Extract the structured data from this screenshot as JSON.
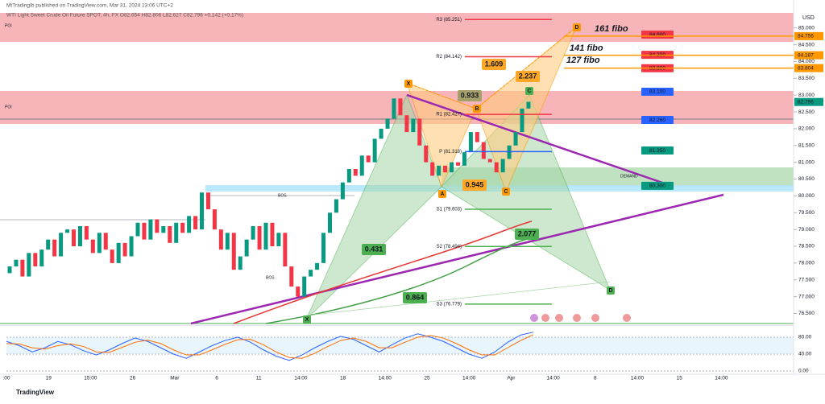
{
  "header": {
    "published": "MtTradingIb published on TradingView.com, Mar 31, 2024 13:06 UTC+2",
    "symbol": "WTI Light Sweet Crude Oil Future SPOT, 4h, FX  O82.654 H82.806 L82.627 C82.796 +0.142 (+0.17%)"
  },
  "price_axis": {
    "currency": "USD",
    "ylim": [
      76.2,
      85.4
    ],
    "ticks": [
      {
        "value": 85,
        "label": "85.000"
      },
      {
        "value": 84.5,
        "label": "84.500"
      },
      {
        "value": 84,
        "label": "84.000"
      },
      {
        "value": 83.5,
        "label": "83.500"
      },
      {
        "value": 83,
        "label": "83.000"
      },
      {
        "value": 82.5,
        "label": "82.500"
      },
      {
        "value": 82,
        "label": "82.000"
      },
      {
        "value": 81.5,
        "label": "81.500"
      },
      {
        "value": 81,
        "label": "81.000"
      },
      {
        "value": 80.5,
        "label": "80.500"
      },
      {
        "value": 80,
        "label": "80.000"
      },
      {
        "value": 79.5,
        "label": "79.500"
      },
      {
        "value": 79,
        "label": "79.000"
      },
      {
        "value": 78.5,
        "label": "78.500"
      },
      {
        "value": 78,
        "label": "78.000"
      },
      {
        "value": 77.5,
        "label": "77.500"
      },
      {
        "value": 77,
        "label": "77.000"
      },
      {
        "value": 76.5,
        "label": "76.500"
      }
    ]
  },
  "axis_tags": [
    {
      "value": 84.756,
      "label": "84.756",
      "color": "#ff9800"
    },
    {
      "value": 84.187,
      "label": "84.187",
      "color": "#ff9800"
    },
    {
      "value": 83.804,
      "label": "83.804",
      "color": "#ff9800"
    },
    {
      "value": 82.796,
      "label": "82.796",
      "color": "#089981"
    }
  ],
  "target_tags": [
    {
      "value": 84.8,
      "label": "84.800",
      "color": "#f23645"
    },
    {
      "value": 84.2,
      "label": "84.200",
      "color": "#f23645"
    },
    {
      "value": 83.8,
      "label": "83.800",
      "color": "#f23645"
    },
    {
      "value": 83.1,
      "label": "83.100",
      "color": "#2962ff"
    },
    {
      "value": 82.26,
      "label": "82.260",
      "color": "#2962ff"
    },
    {
      "value": 81.35,
      "label": "81.350",
      "color": "#089981"
    },
    {
      "value": 80.3,
      "label": "80.300",
      "color": "#089981"
    }
  ],
  "pivots": [
    {
      "value": 85.251,
      "label": "R3 (85.251)",
      "color": "#f23645"
    },
    {
      "value": 84.142,
      "label": "R2 (84.142)",
      "color": "#f23645"
    },
    {
      "value": 82.427,
      "label": "R1 (82.427)",
      "color": "#f23645"
    },
    {
      "value": 81.318,
      "label": "P (81.318)",
      "color": "#2962ff"
    },
    {
      "value": 79.603,
      "label": "S1 (79.603)",
      "color": "#4caf50"
    },
    {
      "value": 78.494,
      "label": "S2 (78.494)",
      "color": "#4caf50"
    },
    {
      "value": 76.779,
      "label": "S3 (76.779)",
      "color": "#4caf50"
    }
  ],
  "candles": {
    "up_color": "#089981",
    "down_color": "#f23645",
    "first_open": 77.7,
    "closes": [
      77.9,
      78.1,
      77.6,
      78.3,
      77.9,
      78.4,
      78.7,
      78.2,
      78.9,
      79.0,
      78.5,
      79.1,
      78.7,
      78.3,
      78.9,
      78.4,
      78.0,
      78.6,
      78.2,
      78.8,
      79.2,
      78.7,
      79.3,
      78.9,
      79.1,
      78.6,
      79.2,
      78.9,
      79.4,
      79.0,
      80.1,
      79.6,
      79.0,
      78.4,
      78.9,
      77.8,
      78.2,
      78.7,
      79.1,
      78.4,
      79.2,
      78.5,
      78.9,
      77.9,
      77.3,
      77.0,
      77.6,
      77.8,
      78.0,
      78.9,
      79.5,
      79.9,
      80.4,
      80.8,
      80.6,
      81.2,
      81.0,
      81.7,
      82.0,
      82.3,
      82.9,
      82.4,
      81.9,
      82.3,
      81.5,
      81.0,
      80.6,
      80.9,
      80.7,
      81.0,
      80.9,
      81.3,
      81.9,
      81.6,
      81.1,
      81.0,
      80.7,
      81.1,
      81.5,
      81.9,
      82.6,
      82.8
    ]
  },
  "pattern_points": [
    "X",
    "A",
    "B",
    "C",
    "D",
    "C",
    "D",
    "X"
  ],
  "ratios": [
    "0.933",
    "1.609",
    "2.237",
    "0.945",
    "0.431",
    "2.077",
    "0.864"
  ],
  "fibo": [
    "161 fibo",
    "141 fibo",
    "127 fibo"
  ],
  "zones": [
    "POI",
    "POI",
    "DEMAND",
    "BOS",
    "BOS"
  ],
  "time_labels": [
    ":00",
    "19",
    "15:00",
    "26",
    "Mar",
    "6",
    "11",
    "14:00",
    "18",
    "14:00",
    "25",
    "14:00",
    "Apr",
    "14:00",
    "8",
    "14:00",
    "15",
    "14:00"
  ],
  "oscillator": {
    "ylim": [
      0,
      100
    ],
    "ticks": [
      {
        "value": 80,
        "label": "80.00"
      },
      {
        "value": 40,
        "label": "40.00"
      },
      {
        "value": 0,
        "label": "0.00"
      }
    ],
    "k_color": "#2962ff",
    "d_color": "#ff6d00",
    "k": [
      70,
      60,
      45,
      55,
      70,
      62,
      48,
      38,
      50,
      65,
      78,
      70,
      55,
      40,
      30,
      45,
      60,
      72,
      80,
      68,
      50,
      35,
      25,
      38,
      55,
      70,
      82,
      75,
      60,
      45,
      62,
      78,
      88,
      80,
      70,
      55,
      40,
      30,
      45,
      68,
      85,
      92
    ],
    "d": [
      65,
      64,
      55,
      52,
      60,
      64,
      58,
      45,
      44,
      56,
      68,
      73,
      65,
      50,
      38,
      38,
      50,
      63,
      74,
      75,
      62,
      45,
      32,
      30,
      42,
      58,
      72,
      78,
      70,
      55,
      55,
      68,
      80,
      84,
      78,
      65,
      50,
      38,
      38,
      55,
      72,
      86
    ]
  },
  "footer": "TradingView"
}
